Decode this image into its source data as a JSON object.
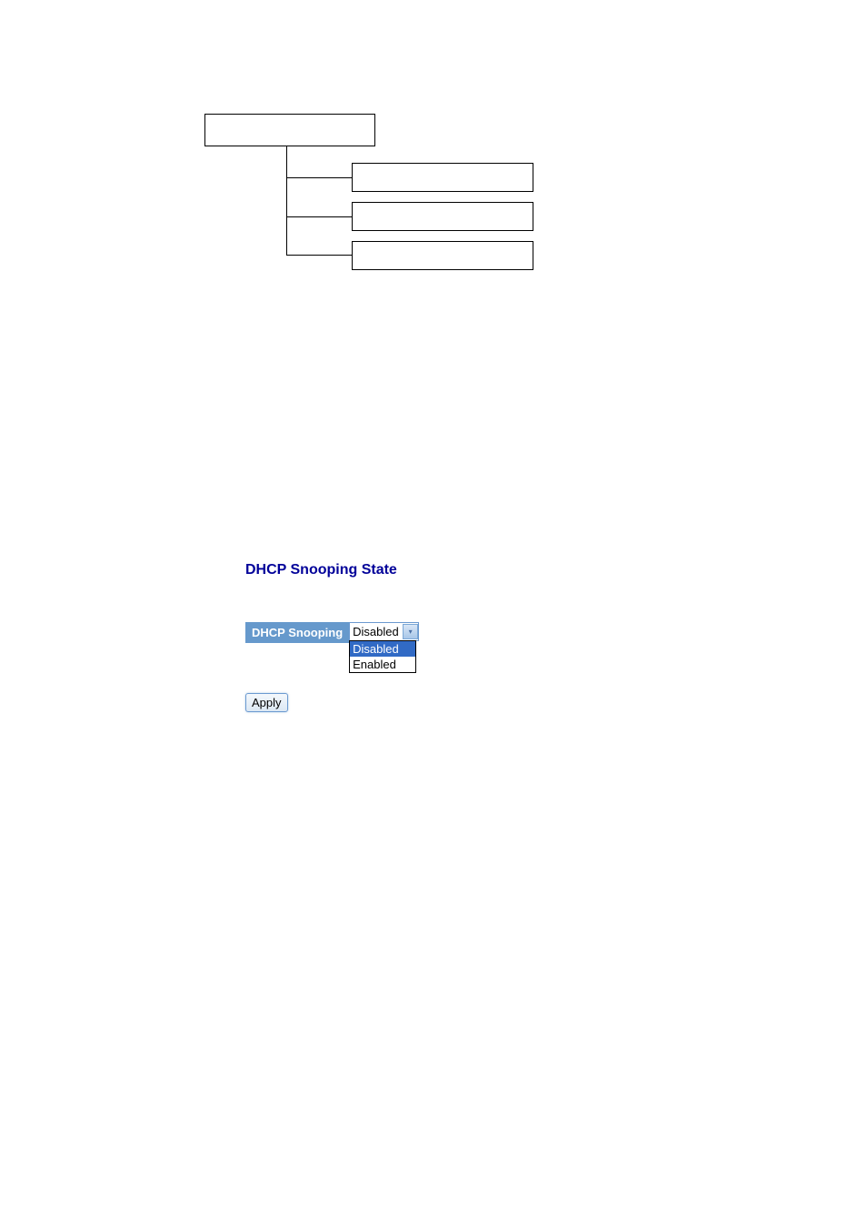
{
  "diagram": {
    "root_label": "",
    "children": [
      "",
      "",
      ""
    ],
    "box_border_color": "#000000",
    "box_background": "#ffffff"
  },
  "form": {
    "heading": "DHCP Snooping State",
    "heading_color": "#000099",
    "label": "DHCP Snooping",
    "label_bg": "#6699cc",
    "label_color": "#ffffff",
    "select_value": "Disabled",
    "options": [
      "Disabled",
      "Enabled"
    ],
    "selected_option_bg": "#316ac5",
    "apply_label": "Apply"
  }
}
